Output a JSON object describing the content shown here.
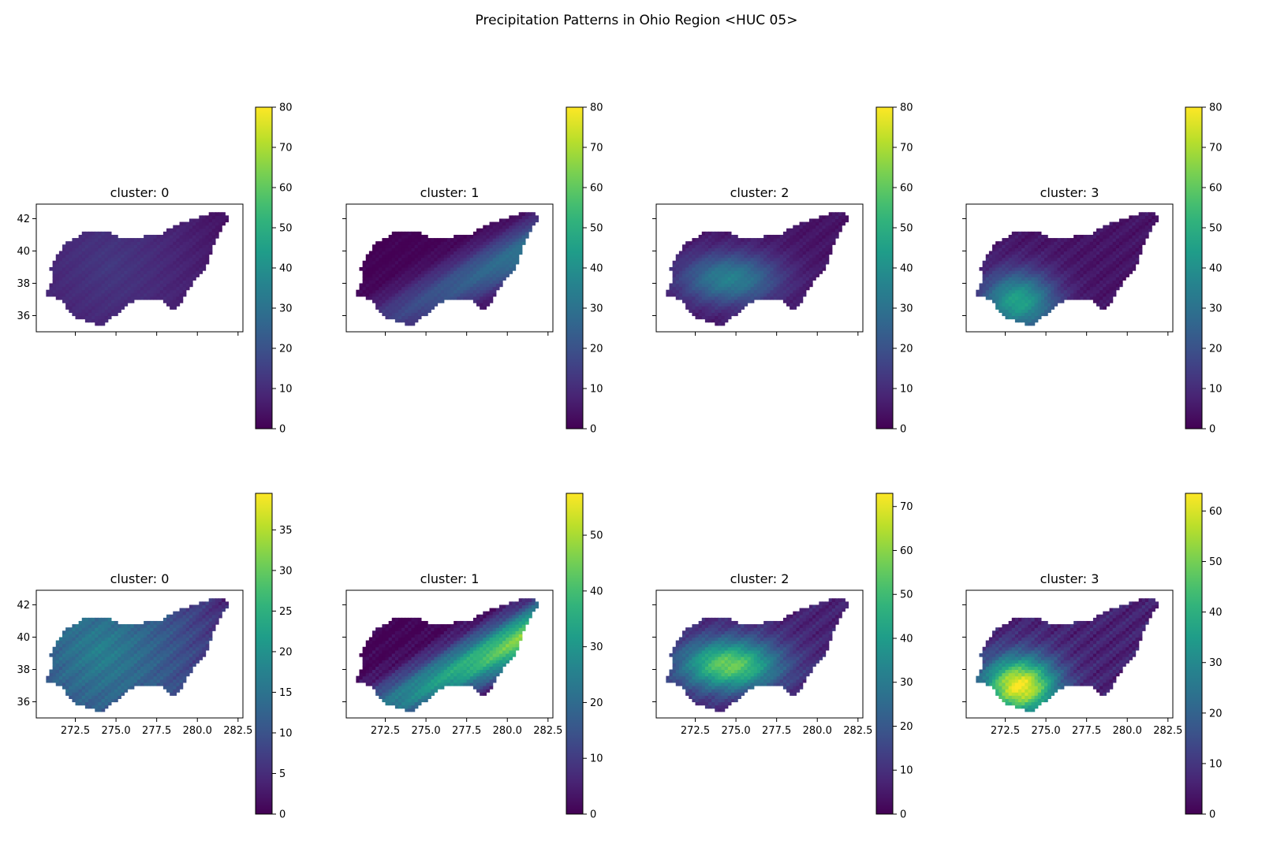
{
  "figure": {
    "title": "Precipitation Patterns in Ohio Region <HUC 05>"
  },
  "chart_data": [
    {
      "type": "heatmap",
      "title": "cluster: 0",
      "row": 0,
      "col": 0,
      "pattern": "uniform",
      "cbar_max": 80,
      "cbar_ticks": [
        0,
        10,
        20,
        30,
        40,
        50,
        60,
        70,
        80
      ],
      "level": 0.3,
      "hotspot": [
        274.5,
        39.0
      ],
      "yticks": [
        36,
        38,
        40,
        42
      ],
      "xticks": [
        272.5,
        275.0,
        277.5,
        280.0,
        282.5
      ],
      "xlim": [
        270.1,
        282.8
      ],
      "ylim": [
        35.0,
        42.9
      ],
      "show_xticklabels": false,
      "show_yticklabels": true
    },
    {
      "type": "heatmap",
      "title": "cluster: 1",
      "row": 0,
      "col": 1,
      "pattern": "northeast-southwest band",
      "cbar_max": 80,
      "cbar_ticks": [
        0,
        10,
        20,
        30,
        40,
        50,
        60,
        70,
        80
      ],
      "level": 0.4,
      "hotspot": [
        278.5,
        39.5
      ],
      "yticks": [
        36,
        38,
        40,
        42
      ],
      "xticks": [
        272.5,
        275.0,
        277.5,
        280.0,
        282.5
      ],
      "xlim": [
        270.1,
        282.8
      ],
      "ylim": [
        35.0,
        42.9
      ],
      "show_xticklabels": false,
      "show_yticklabels": false
    },
    {
      "type": "heatmap",
      "title": "cluster: 2",
      "row": 0,
      "col": 2,
      "pattern": "central-west peak",
      "cbar_max": 80,
      "cbar_ticks": [
        0,
        10,
        20,
        30,
        40,
        50,
        60,
        70,
        80
      ],
      "level": 0.45,
      "hotspot": [
        274.5,
        38.2
      ],
      "yticks": [
        36,
        38,
        40,
        42
      ],
      "xticks": [
        272.5,
        275.0,
        277.5,
        280.0,
        282.5
      ],
      "xlim": [
        270.1,
        282.8
      ],
      "ylim": [
        35.0,
        42.9
      ],
      "show_xticklabels": false,
      "show_yticklabels": false
    },
    {
      "type": "heatmap",
      "title": "cluster: 3",
      "row": 0,
      "col": 3,
      "pattern": "southwest peak",
      "cbar_max": 80,
      "cbar_ticks": [
        0,
        10,
        20,
        30,
        40,
        50,
        60,
        70,
        80
      ],
      "level": 0.55,
      "hotspot": [
        273.2,
        36.8
      ],
      "yticks": [
        36,
        38,
        40,
        42
      ],
      "xticks": [
        272.5,
        275.0,
        277.5,
        280.0,
        282.5
      ],
      "xlim": [
        270.1,
        282.8
      ],
      "ylim": [
        35.0,
        42.9
      ],
      "show_xticklabels": false,
      "show_yticklabels": false
    },
    {
      "type": "heatmap",
      "title": "cluster: 0",
      "row": 1,
      "col": 0,
      "pattern": "uniform",
      "cbar_max": 39.5,
      "cbar_ticks": [
        0,
        5,
        10,
        15,
        20,
        25,
        30,
        35
      ],
      "level": 0.8,
      "hotspot": [
        274.0,
        39.0
      ],
      "yticks": [
        36,
        38,
        40,
        42
      ],
      "xticks": [
        272.5,
        275.0,
        277.5,
        280.0,
        282.5
      ],
      "xlim": [
        270.1,
        282.8
      ],
      "ylim": [
        35.0,
        42.9
      ],
      "show_xticklabels": true,
      "show_yticklabels": true
    },
    {
      "type": "heatmap",
      "title": "cluster: 1",
      "row": 1,
      "col": 1,
      "pattern": "northeast-southwest band",
      "cbar_max": 57.5,
      "cbar_ticks": [
        0,
        10,
        20,
        30,
        40,
        50
      ],
      "level": 0.85,
      "hotspot": [
        278.8,
        39.6
      ],
      "yticks": [
        36,
        38,
        40,
        42
      ],
      "xticks": [
        272.5,
        275.0,
        277.5,
        280.0,
        282.5
      ],
      "xlim": [
        270.1,
        282.8
      ],
      "ylim": [
        35.0,
        42.9
      ],
      "show_xticklabels": true,
      "show_yticklabels": false
    },
    {
      "type": "heatmap",
      "title": "cluster: 2",
      "row": 1,
      "col": 2,
      "pattern": "central-west peak",
      "cbar_max": 73,
      "cbar_ticks": [
        0,
        10,
        20,
        30,
        40,
        50,
        60,
        70
      ],
      "level": 0.8,
      "hotspot": [
        274.5,
        38.2
      ],
      "yticks": [
        36,
        38,
        40,
        42
      ],
      "xticks": [
        272.5,
        275.0,
        277.5,
        280.0,
        282.5
      ],
      "xlim": [
        270.1,
        282.8
      ],
      "ylim": [
        35.0,
        42.9
      ],
      "show_xticklabels": true,
      "show_yticklabels": false
    },
    {
      "type": "heatmap",
      "title": "cluster: 3",
      "row": 1,
      "col": 3,
      "pattern": "southwest peak",
      "cbar_max": 63.5,
      "cbar_ticks": [
        0,
        10,
        20,
        30,
        40,
        50,
        60
      ],
      "level": 0.95,
      "hotspot": [
        273.3,
        36.9
      ],
      "yticks": [
        36,
        38,
        40,
        42
      ],
      "xticks": [
        272.5,
        275.0,
        277.5,
        280.0,
        282.5
      ],
      "xlim": [
        270.1,
        282.8
      ],
      "ylim": [
        35.0,
        42.9
      ],
      "show_xticklabels": true,
      "show_yticklabels": false
    }
  ],
  "colormap": "viridis"
}
